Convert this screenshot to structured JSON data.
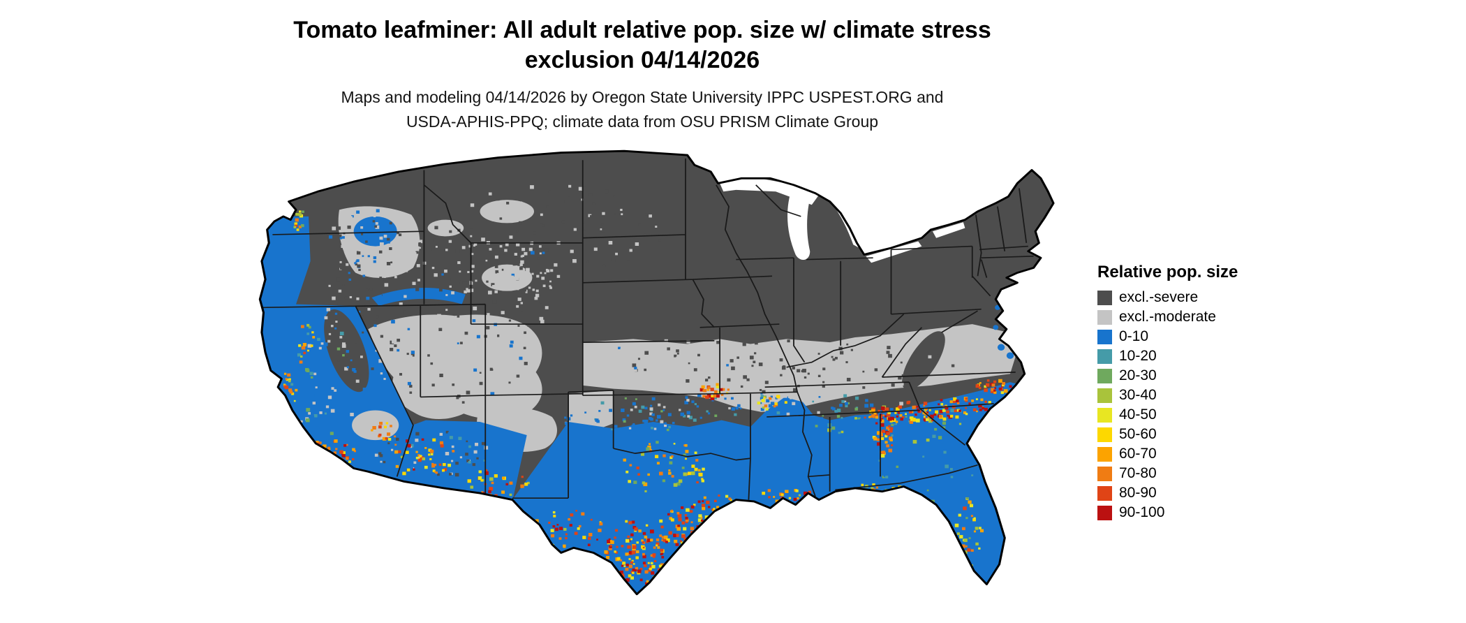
{
  "title": {
    "line1": "Tomato leafminer: All adult relative pop. size w/ climate stress",
    "line2": "exclusion 04/14/2026"
  },
  "subtitle": {
    "line1": "Maps and modeling 04/14/2026 by Oregon State University IPPC USPEST.ORG and",
    "line2": "USDA-APHIS-PPQ; climate data from OSU PRISM Climate Group"
  },
  "legend": {
    "title": "Relative pop. size",
    "items": [
      {
        "label": "excl.-severe",
        "color": "#4d4d4d"
      },
      {
        "label": "excl.-moderate",
        "color": "#c4c4c4"
      },
      {
        "label": "0-10",
        "color": "#1874cd"
      },
      {
        "label": "10-20",
        "color": "#459ba8"
      },
      {
        "label": "20-30",
        "color": "#6fa95e"
      },
      {
        "label": "30-40",
        "color": "#a9c33b"
      },
      {
        "label": "40-50",
        "color": "#e8e622"
      },
      {
        "label": "50-60",
        "color": "#fdd800"
      },
      {
        "label": "60-70",
        "color": "#fca300"
      },
      {
        "label": "70-80",
        "color": "#f07c13"
      },
      {
        "label": "80-90",
        "color": "#e04416"
      },
      {
        "label": "90-100",
        "color": "#bb1111"
      }
    ]
  },
  "map": {
    "region": "Continental United States",
    "kind": "relative population raster map"
  }
}
